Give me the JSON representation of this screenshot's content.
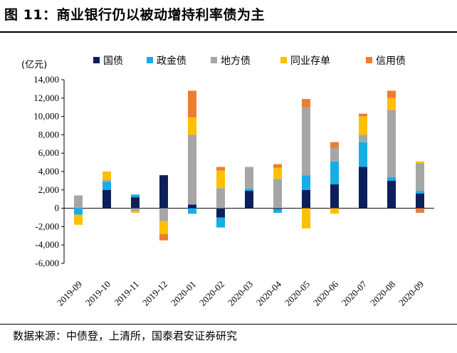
{
  "figure": {
    "title": "图 11：商业银行仍以被动增持利率债为主",
    "source": "数据来源：中债登，上清所，国泰君安证券研究"
  },
  "chart_data": {
    "type": "bar",
    "stacked": true,
    "unit_label": "(亿元)",
    "categories": [
      "2019-09",
      "2019-10",
      "2019-11",
      "2019-12",
      "2020-01",
      "2020-02",
      "2020-03",
      "2020-04",
      "2020-05",
      "2020-06",
      "2020-07",
      "2020-08",
      "2020-09"
    ],
    "series": [
      {
        "name": "国债",
        "color": "#0c1f5a",
        "values": [
          0,
          2000,
          1200,
          3600,
          400,
          -1000,
          1900,
          -100,
          2000,
          2600,
          4500,
          3000,
          1600
        ]
      },
      {
        "name": "政金债",
        "color": "#16aee8",
        "values": [
          -700,
          900,
          300,
          0,
          -600,
          -1100,
          200,
          -400,
          1600,
          2500,
          2700,
          400,
          300
        ]
      },
      {
        "name": "地方债",
        "color": "#a6a6a6",
        "values": [
          1400,
          200,
          -300,
          -1400,
          7600,
          2200,
          2400,
          3200,
          7400,
          1500,
          800,
          7300,
          3000
        ]
      },
      {
        "name": "同业存单",
        "color": "#ffc000",
        "values": [
          -1100,
          900,
          -200,
          -1400,
          1900,
          1900,
          0,
          1200,
          -2200,
          -600,
          2000,
          1300,
          200
        ]
      },
      {
        "name": "信用债",
        "color": "#ed7d31",
        "values": [
          0,
          0,
          0,
          -700,
          2900,
          400,
          0,
          400,
          900,
          600,
          300,
          800,
          -500
        ]
      }
    ],
    "ylim": [
      -6000,
      14000
    ],
    "yticks": [
      -6000,
      -4000,
      -2000,
      0,
      2000,
      4000,
      6000,
      8000,
      10000,
      12000,
      14000
    ],
    "ytick_labels": [
      "-6,000",
      "-4,000",
      "-2,000",
      "0",
      "2,000",
      "4,000",
      "6,000",
      "8,000",
      "10,000",
      "12,000",
      "14,000"
    ],
    "legend_position": "top",
    "grid": false
  }
}
